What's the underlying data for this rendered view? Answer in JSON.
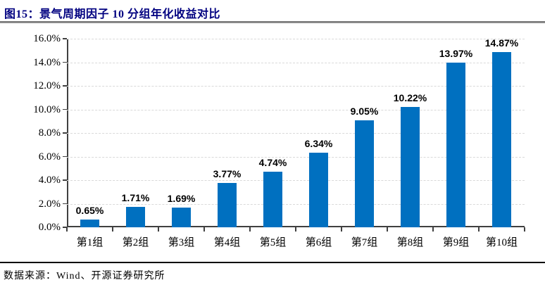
{
  "page": {
    "title": "图15：景气周期因子 10 分组年化收益对比",
    "source": "数据来源：Wind、开源证券研究所"
  },
  "chart_data": {
    "type": "bar",
    "title": "图15：景气周期因子 10 分组年化收益对比",
    "categories": [
      "第1组",
      "第2组",
      "第3组",
      "第4组",
      "第5组",
      "第6组",
      "第7组",
      "第8组",
      "第9组",
      "第10组"
    ],
    "values": [
      0.65,
      1.71,
      1.69,
      3.77,
      4.74,
      6.34,
      9.05,
      10.22,
      13.97,
      14.87
    ],
    "data_labels": [
      "0.65%",
      "1.71%",
      "1.69%",
      "3.77%",
      "4.74%",
      "6.34%",
      "9.05%",
      "10.22%",
      "13.97%",
      "14.87%"
    ],
    "y_tick_labels": [
      "0.0%",
      "2.0%",
      "4.0%",
      "6.0%",
      "8.0%",
      "10.0%",
      "12.0%",
      "14.0%",
      "16.0%"
    ],
    "ylim": [
      0,
      16
    ],
    "y_tick_step": 2,
    "grid": true,
    "legend": "none",
    "xlabel": "",
    "ylabel": "",
    "source": "数据来源：Wind、开源证券研究所",
    "colors": {
      "bar": "#0070C0",
      "title": "#000080",
      "grid": "#D9D9D9",
      "axis": "#404040",
      "data_label": "#000000"
    }
  }
}
